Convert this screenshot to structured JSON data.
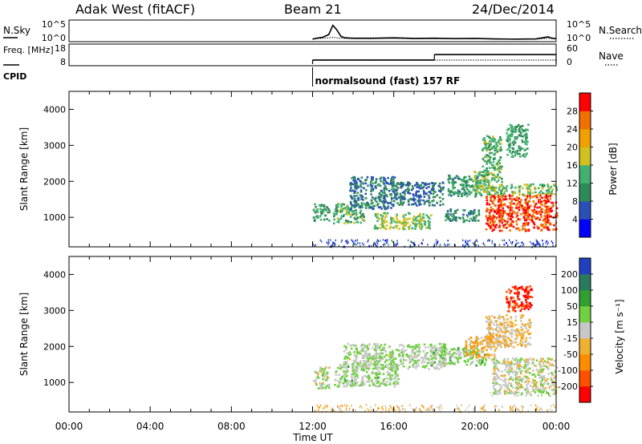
{
  "header": {
    "station": "Adak West (fitACF)",
    "beam": "Beam 21",
    "date": "24/Dec/2014"
  },
  "chart_data": [
    {
      "type": "line",
      "panel": "noise",
      "left_label": "N.Sky",
      "right_label": "N.Search",
      "left_ticks": [
        "10^5",
        "10^0"
      ],
      "right_ticks": [
        "10^5",
        "10^0"
      ],
      "x_hours": [
        12.0,
        12.2,
        12.5,
        12.8,
        13.0,
        13.2,
        13.4,
        13.6,
        14,
        15,
        16,
        17,
        18,
        19,
        20,
        21,
        22,
        23,
        23.6,
        23.8,
        24
      ],
      "n_sky": [
        0.05,
        0.1,
        0.15,
        0.3,
        0.8,
        0.55,
        0.2,
        0.12,
        0.1,
        0.1,
        0.12,
        0.09,
        0.1,
        0.08,
        0.09,
        0.06,
        0.05,
        0.06,
        0.18,
        0.1,
        0.08
      ],
      "n_search": [
        0.05,
        0.08,
        0.1,
        0.12,
        0.14,
        0.12,
        0.1,
        0.09,
        0.08,
        0.08,
        0.09,
        0.07,
        0.08,
        0.07,
        0.07,
        0.05,
        0.05,
        0.05,
        0.1,
        0.08,
        0.06
      ]
    },
    {
      "type": "line",
      "panel": "frequency",
      "left_label": "Freq. [MHz]",
      "right_label": "Nave",
      "left_ticks": [
        "18",
        "8"
      ],
      "right_ticks": [
        "60",
        "0"
      ],
      "freq_steps": [
        {
          "start": 12,
          "end": 18,
          "mhz": 10.2
        },
        {
          "start": 18,
          "end": 24,
          "mhz": 13.2
        }
      ],
      "nave_steps": [
        {
          "start": 12,
          "end": 18,
          "value": 14
        },
        {
          "start": 18,
          "end": 24,
          "value": 13
        }
      ]
    },
    {
      "type": "text",
      "panel": "cpid",
      "label": "CPID",
      "x_hours": 12,
      "text": "normalsound (fast) 157 RF"
    },
    {
      "type": "heatmap",
      "panel": "power",
      "ylabel": "Slant Range [km]",
      "ylim": [
        180,
        4500
      ],
      "yticks": [
        1000,
        2000,
        3000,
        4000
      ],
      "colorbar": {
        "label": "Power [dB]",
        "min": 0,
        "max": 32,
        "ticks": [
          4,
          8,
          12,
          16,
          20,
          24,
          28
        ],
        "colors": [
          "#0000ff",
          "#2a50b8",
          "#2e8b57",
          "#44b070",
          "#d0c020",
          "#f0a000",
          "#f07000",
          "#ff0000"
        ]
      },
      "regions": [
        {
          "t0": 12.0,
          "t1": 12.8,
          "r0": 900,
          "r1": 1400,
          "v": 12
        },
        {
          "t0": 13.0,
          "t1": 14.5,
          "r0": 850,
          "r1": 1400,
          "v": 14
        },
        {
          "t0": 13.8,
          "t1": 16.0,
          "r0": 1250,
          "r1": 2150,
          "v": 9
        },
        {
          "t0": 16.0,
          "t1": 18.4,
          "r0": 1350,
          "r1": 2000,
          "v": 8
        },
        {
          "t0": 15.0,
          "t1": 17.8,
          "r0": 700,
          "r1": 1150,
          "v": 16
        },
        {
          "t0": 18.5,
          "t1": 20.2,
          "r0": 900,
          "r1": 1250,
          "v": 10
        },
        {
          "t0": 18.6,
          "t1": 20.3,
          "r0": 1600,
          "r1": 2200,
          "v": 11
        },
        {
          "t0": 19.9,
          "t1": 20.8,
          "r0": 1700,
          "r1": 2300,
          "v": 16
        },
        {
          "t0": 20.5,
          "t1": 24.0,
          "r0": 650,
          "r1": 1650,
          "v": 28
        },
        {
          "t0": 20.5,
          "t1": 24.0,
          "r0": 1650,
          "r1": 1950,
          "v": 15
        },
        {
          "t0": 20.3,
          "t1": 21.3,
          "r0": 2000,
          "r1": 3300,
          "v": 14
        },
        {
          "t0": 21.5,
          "t1": 22.6,
          "r0": 2700,
          "r1": 3600,
          "v": 12
        },
        {
          "t0": 12.0,
          "t1": 24.0,
          "r0": 200,
          "r1": 400,
          "v": 6
        }
      ]
    },
    {
      "type": "heatmap",
      "panel": "velocity",
      "ylabel": "Slant Range [km]",
      "xlabel": "Time UT",
      "ylim": [
        180,
        4500
      ],
      "yticks": [
        1000,
        2000,
        3000,
        4000
      ],
      "xlim": [
        0,
        24
      ],
      "xticks": [
        "00:00",
        "04:00",
        "08:00",
        "12:00",
        "16:00",
        "20:00",
        "00:00"
      ],
      "colorbar": {
        "label": "Velocity [m s⁻¹]",
        "min": -250,
        "max": 250,
        "ticks": [
          200,
          100,
          50,
          15,
          -15,
          -50,
          -100,
          -200
        ],
        "colors": [
          "#ff0000",
          "#ff5000",
          "#ff8c00",
          "#f0b030",
          "#c8c8c8",
          "#70d040",
          "#30a030",
          "#2a7a60",
          "#2040c0"
        ]
      },
      "regions": [
        {
          "t0": 12.0,
          "t1": 12.8,
          "r0": 850,
          "r1": 1450,
          "v": 0
        },
        {
          "t0": 13.0,
          "t1": 16.2,
          "r0": 900,
          "r1": 1550,
          "v": 30
        },
        {
          "t0": 13.5,
          "t1": 18.5,
          "r0": 1400,
          "r1": 2100,
          "v": 25
        },
        {
          "t0": 17.8,
          "t1": 20.5,
          "r0": 1500,
          "r1": 2000,
          "v": 40
        },
        {
          "t0": 19.5,
          "t1": 21.0,
          "r0": 1700,
          "r1": 2300,
          "v": -60
        },
        {
          "t0": 20.8,
          "t1": 24.0,
          "r0": 700,
          "r1": 1700,
          "v": 0
        },
        {
          "t0": 20.7,
          "t1": 24.0,
          "r0": 650,
          "r1": 800,
          "v": 30
        },
        {
          "t0": 20.5,
          "t1": 22.7,
          "r0": 2000,
          "r1": 2900,
          "v": -40
        },
        {
          "t0": 21.5,
          "t1": 22.8,
          "r0": 3000,
          "r1": 3700,
          "v": -200
        },
        {
          "t0": 12.0,
          "t1": 24.0,
          "r0": 200,
          "r1": 400,
          "v": -40
        }
      ]
    }
  ]
}
